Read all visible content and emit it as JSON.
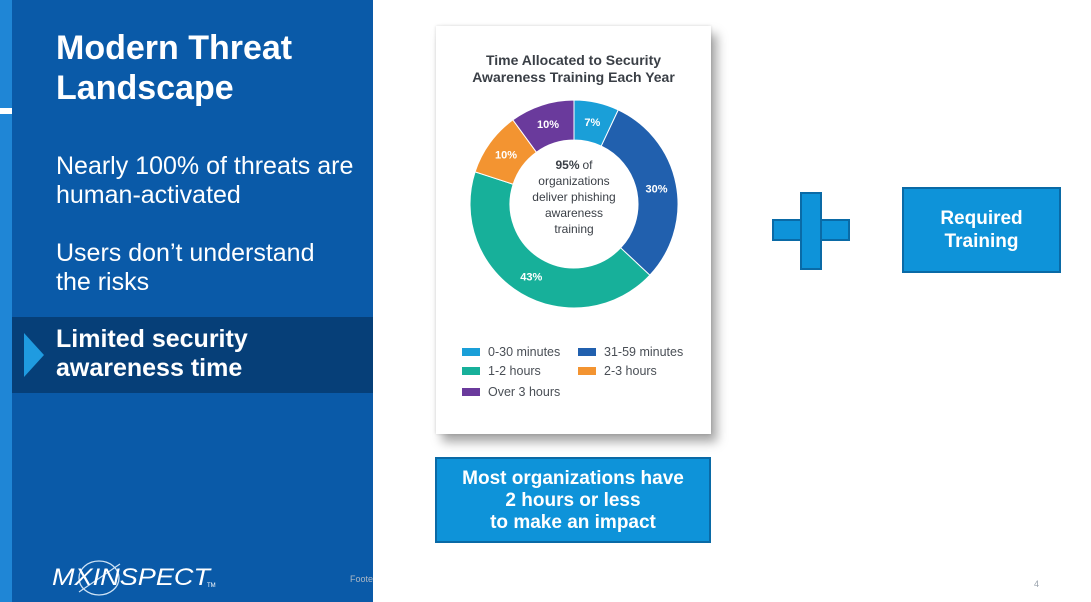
{
  "slide": {
    "title": "Modern Threat Landscape",
    "bullets": [
      "Nearly 100% of threats are human-activated",
      "Users don’t understand the risks"
    ],
    "highlighted_bullet": "Limited security awareness time",
    "logo_text": "MXINSPECT",
    "logo_tm": "TM",
    "footer_text": "Foote",
    "page_number": "4"
  },
  "infographic": {
    "title_line1": "Time Allocated to Security",
    "title_line2": "Awareness Training Each Year",
    "center_pct": "95%",
    "center_line1": "of",
    "center_line2": "organizations",
    "center_line3": "deliver phishing",
    "center_line4": "awareness",
    "center_line5": "training",
    "legend": [
      {
        "label": "0-30 minutes",
        "color": "#1a9fd8"
      },
      {
        "label": "31-59 minutes",
        "color": "#2160ae"
      },
      {
        "label": "1-2 hours",
        "color": "#17b09a"
      },
      {
        "label": "2-3 hours",
        "color": "#f39431"
      },
      {
        "label": "Over 3 hours",
        "color": "#6a3a9c"
      }
    ]
  },
  "chart_data": {
    "type": "pie",
    "title": "Time Allocated to Security Awareness Training Each Year",
    "categories": [
      "0-30 minutes",
      "31-59 minutes",
      "1-2 hours",
      "2-3 hours",
      "Over 3 hours"
    ],
    "values": [
      7,
      30,
      43,
      10,
      10
    ],
    "data_labels": [
      "7%",
      "30%",
      "43%",
      "10%",
      "10%"
    ],
    "colors": [
      "#1a9fd8",
      "#2160ae",
      "#17b09a",
      "#f39431",
      "#6a3a9c"
    ],
    "legend_position": "bottom"
  },
  "callout": {
    "line1": "Most organizations have",
    "line2": "2 hours or less",
    "line3": "to make an impact"
  },
  "required_box": {
    "line1": "Required",
    "line2": "Training"
  },
  "colors": {
    "panel_blue": "#0a5aa8",
    "highlight_navy": "#063f78",
    "accent_blue": "#0e93d9"
  }
}
